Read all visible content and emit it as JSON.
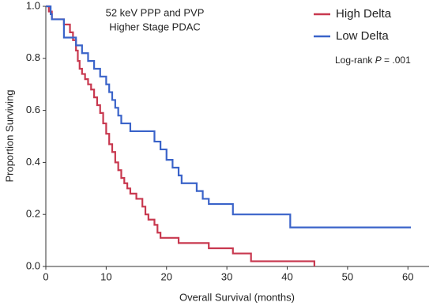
{
  "chart_data": {
    "type": "step",
    "annotations": [
      "52 keV PPP and PVP",
      "Higher Stage PDAC",
      "Log-rank ",
      "P",
      " = .001"
    ],
    "x_label": "Overall Survival (months)",
    "y_label": "Proportion Surviving",
    "xlim": [
      0,
      63.5
    ],
    "ylim": [
      0,
      1
    ],
    "xticks": [
      0,
      10,
      20,
      30,
      40,
      50,
      60
    ],
    "yticks": [
      {
        "value": 0,
        "label": "0.0"
      },
      0.2,
      0.4,
      0.6,
      0.8,
      {
        "value": 1,
        "label": "1.0"
      }
    ],
    "legend": "top-right",
    "series": [
      {
        "name": "High Delta",
        "color": "#c8384f",
        "x": [
          0,
          0.5,
          1,
          3,
          4,
          4.5,
          5,
          5.3,
          5.6,
          6,
          6.5,
          7,
          7.5,
          8,
          8.5,
          9,
          9.5,
          10,
          10.5,
          11,
          11.5,
          12,
          12.5,
          13,
          13.5,
          14,
          15,
          16,
          16.5,
          17,
          18,
          18.5,
          19,
          22,
          27,
          31,
          34,
          44.5
        ],
        "values": [
          1,
          0.98,
          0.95,
          0.93,
          0.9,
          0.87,
          0.83,
          0.79,
          0.76,
          0.74,
          0.72,
          0.7,
          0.68,
          0.65,
          0.62,
          0.59,
          0.55,
          0.51,
          0.47,
          0.44,
          0.4,
          0.37,
          0.34,
          0.32,
          0.3,
          0.28,
          0.26,
          0.23,
          0.2,
          0.18,
          0.16,
          0.13,
          0.11,
          0.09,
          0.07,
          0.05,
          0.02,
          0
        ]
      },
      {
        "name": "Low Delta",
        "color": "#3a63c9",
        "x": [
          0,
          0.8,
          1,
          3,
          5,
          6,
          7,
          8,
          9,
          10,
          10.5,
          11,
          11.5,
          12,
          12.5,
          14,
          18,
          19,
          20,
          21,
          22,
          22.5,
          25,
          26,
          27,
          31,
          40.5,
          60.5
        ],
        "values": [
          1,
          0.97,
          0.95,
          0.88,
          0.85,
          0.82,
          0.79,
          0.76,
          0.73,
          0.7,
          0.67,
          0.64,
          0.61,
          0.58,
          0.55,
          0.52,
          0.48,
          0.45,
          0.41,
          0.38,
          0.35,
          0.32,
          0.29,
          0.26,
          0.24,
          0.2,
          0.15,
          0.15
        ]
      }
    ]
  }
}
